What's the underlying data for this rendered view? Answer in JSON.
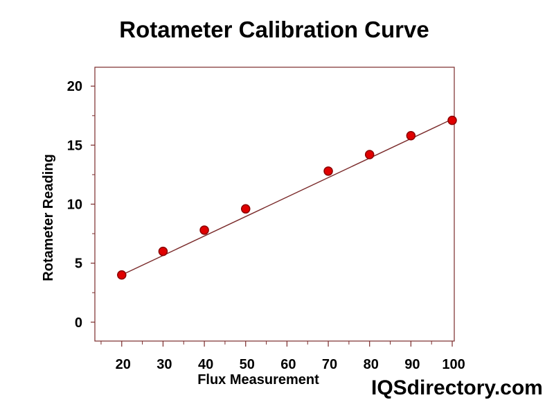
{
  "chart_data": {
    "type": "scatter",
    "title": "Rotameter Calibration Curve",
    "xlabel": "Flux Measurement",
    "ylabel": "Rotameter Reading",
    "x_ticks": [
      20,
      30,
      40,
      50,
      60,
      70,
      80,
      90,
      100
    ],
    "y_ticks": [
      0,
      5,
      10,
      15,
      20
    ],
    "xlim": [
      13.5,
      100.5
    ],
    "ylim": [
      -1.6,
      21.6
    ],
    "grid": false,
    "legend": "none",
    "series": [
      {
        "x": [
          20,
          30,
          40,
          50,
          70,
          80,
          90,
          100
        ],
        "y": [
          4.0,
          6.0,
          7.8,
          9.6,
          12.8,
          14.2,
          15.8,
          17.1
        ],
        "marker_color": "#e00000",
        "marker_edge_color": "#8b0000"
      }
    ],
    "fit_line": {
      "x": [
        20,
        100
      ],
      "y": [
        4.0,
        17.2
      ],
      "color": "#7a2a2a"
    }
  },
  "frame_color": "#7a2a2a",
  "watermark": "IQSdirectory.com"
}
